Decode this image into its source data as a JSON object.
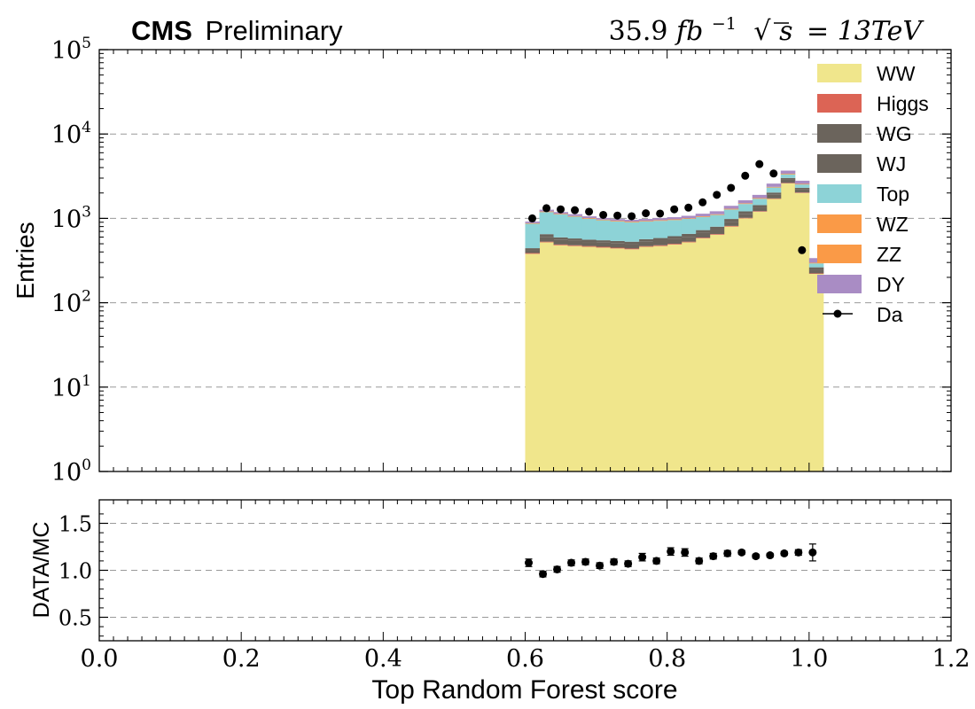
{
  "chart_data": [
    {
      "type": "bar",
      "stacked": true,
      "y_scale": "log",
      "title_left_bold": "CMS",
      "title_left": "Preliminary",
      "title_right": "35.9fb^-1 √s = 13TeV",
      "lumi_value": "35.9",
      "lumi_unit": "fb",
      "lumi_exp": "−1",
      "sqrt_s": "s",
      "energy": "= 13TeV",
      "xlabel": "",
      "ylabel": "Entries",
      "xlim": [
        0.0,
        1.2
      ],
      "ylim": [
        1,
        100000
      ],
      "y_ticks_base": [
        "10",
        "10",
        "10",
        "10",
        "10",
        "10"
      ],
      "y_ticks_exp": [
        "0",
        "1",
        "2",
        "3",
        "4",
        "5"
      ],
      "grid": "horizontal dashed",
      "legend_position": "top-right",
      "legend": [
        "WW",
        "Higgs",
        "WG",
        "WJ",
        "Top",
        "WZ",
        "ZZ",
        "DY",
        "Da"
      ],
      "bin_edges": [
        0.6,
        0.62,
        0.64,
        0.66,
        0.68,
        0.7,
        0.72,
        0.74,
        0.76,
        0.78,
        0.8,
        0.82,
        0.84,
        0.86,
        0.88,
        0.9,
        0.92,
        0.94,
        0.96,
        0.98,
        1.0,
        1.02
      ],
      "series": [
        {
          "name": "WW",
          "color": "#f0e68c",
          "values": [
            380,
            520,
            480,
            470,
            460,
            450,
            440,
            430,
            460,
            470,
            490,
            520,
            580,
            640,
            800,
            1000,
            1200,
            1700,
            2600,
            2000,
            220
          ]
        },
        {
          "name": "Higgs",
          "color": "#dc6455",
          "values": [
            8,
            10,
            10,
            10,
            10,
            10,
            9,
            9,
            9,
            10,
            10,
            10,
            11,
            12,
            14,
            16,
            18,
            24,
            32,
            26,
            3
          ]
        },
        {
          "name": "WG",
          "color": "#6b645c",
          "values": [
            30,
            75,
            65,
            60,
            55,
            55,
            55,
            55,
            60,
            65,
            70,
            75,
            80,
            85,
            100,
            115,
            130,
            180,
            230,
            170,
            25
          ]
        },
        {
          "name": "WJ",
          "color": "#6b645c",
          "values": [
            25,
            45,
            40,
            38,
            35,
            35,
            35,
            35,
            38,
            40,
            45,
            50,
            55,
            60,
            70,
            80,
            90,
            120,
            150,
            110,
            15
          ]
        },
        {
          "name": "Top",
          "color": "#8dd3d7",
          "values": [
            420,
            540,
            520,
            470,
            430,
            400,
            380,
            370,
            350,
            350,
            340,
            330,
            310,
            300,
            290,
            270,
            270,
            300,
            320,
            220,
            30
          ]
        },
        {
          "name": "WZ",
          "color": "#fa9a47",
          "values": [
            10,
            12,
            12,
            12,
            11,
            11,
            11,
            11,
            11,
            11,
            12,
            12,
            13,
            14,
            16,
            18,
            20,
            25,
            30,
            24,
            3
          ]
        },
        {
          "name": "ZZ",
          "color": "#fa9a47",
          "values": [
            5,
            6,
            6,
            6,
            6,
            6,
            6,
            6,
            6,
            6,
            6,
            6,
            7,
            8,
            9,
            10,
            11,
            14,
            18,
            14,
            2
          ]
        },
        {
          "name": "DY",
          "color": "#a98cc4",
          "values": [
            40,
            60,
            55,
            55,
            50,
            45,
            45,
            45,
            50,
            55,
            60,
            70,
            80,
            95,
            110,
            130,
            160,
            220,
            300,
            230,
            40
          ]
        }
      ],
      "data": {
        "name": "Da",
        "x": [
          0.61,
          0.63,
          0.65,
          0.67,
          0.69,
          0.71,
          0.73,
          0.75,
          0.77,
          0.79,
          0.81,
          0.83,
          0.85,
          0.87,
          0.89,
          0.91,
          0.93,
          0.95,
          0.97,
          0.99,
          1.01
        ],
        "y": [
          1000,
          1320,
          1280,
          1250,
          1200,
          1100,
          1080,
          1060,
          1150,
          1140,
          1280,
          1340,
          1550,
          1900,
          2300,
          3200,
          4400,
          3400,
          0,
          420,
          0
        ]
      }
    },
    {
      "type": "scatter",
      "xlabel": "Top Random Forest score",
      "ylabel": "DATA/MC",
      "xlim": [
        0.0,
        1.2
      ],
      "ylim": [
        0.25,
        1.75
      ],
      "x_ticks": [
        "0.0",
        "0.2",
        "0.4",
        "0.6",
        "0.8",
        "1.0",
        "1.2"
      ],
      "y_ticks": [
        "0.5",
        "1.0",
        "1.5"
      ],
      "grid": "horizontal dashed",
      "x": [
        0.605,
        0.625,
        0.645,
        0.665,
        0.685,
        0.705,
        0.725,
        0.745,
        0.765,
        0.785,
        0.805,
        0.825,
        0.845,
        0.865,
        0.885,
        0.905,
        0.925,
        0.945,
        0.965,
        0.985,
        1.005
      ],
      "y": [
        1.08,
        0.96,
        1.01,
        1.08,
        1.09,
        1.05,
        1.09,
        1.07,
        1.14,
        1.1,
        1.2,
        1.19,
        1.1,
        1.15,
        1.18,
        1.19,
        1.15,
        1.16,
        1.18,
        1.19,
        1.19
      ],
      "yerr": [
        0.04,
        0.03,
        0.03,
        0.03,
        0.03,
        0.03,
        0.03,
        0.03,
        0.04,
        0.03,
        0.04,
        0.04,
        0.03,
        0.03,
        0.03,
        0.02,
        0.02,
        0.02,
        0.02,
        0.03,
        0.09
      ]
    }
  ]
}
